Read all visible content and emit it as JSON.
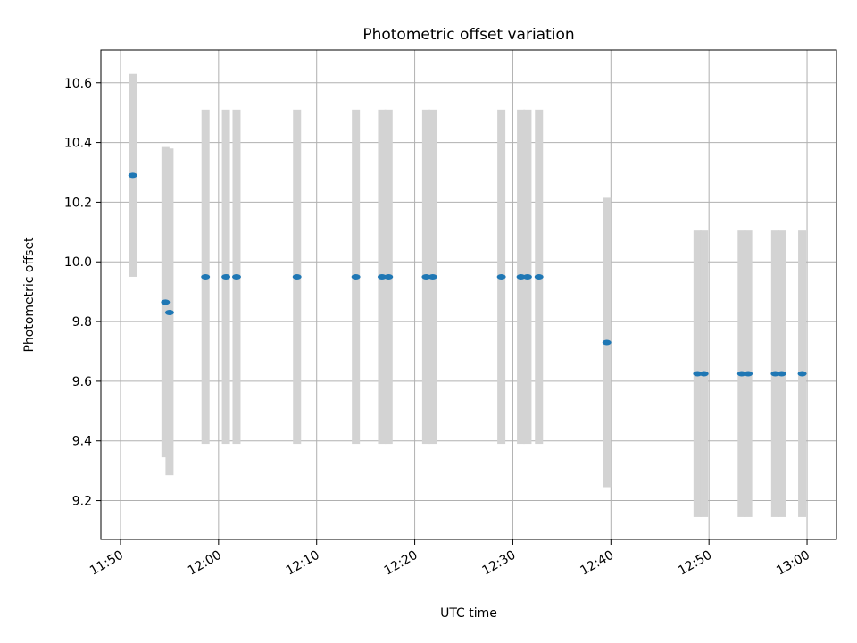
{
  "chart_data": {
    "type": "scatter",
    "title": "Photometric offset variation",
    "xlabel": "UTC time",
    "ylabel": "Photometric offset",
    "x_axis_kind": "time",
    "x_range": [
      "11:48",
      "13:03"
    ],
    "x_ticks": [
      "11:50",
      "12:00",
      "12:10",
      "12:20",
      "12:30",
      "12:40",
      "12:50",
      "13:00"
    ],
    "ylim": [
      9.07,
      10.71
    ],
    "y_ticks": [
      9.2,
      9.4,
      9.6,
      9.8,
      10.0,
      10.2,
      10.4,
      10.6
    ],
    "grid": true,
    "colors": {
      "point": "#1f77b4",
      "error_bar": "#d3d3d3",
      "grid": "#b0b0b0"
    },
    "series": [
      {
        "points": [
          {
            "x": "11:51:15",
            "y": 10.29,
            "ylow": 9.95,
            "yhigh": 10.63
          },
          {
            "x": "11:54:35",
            "y": 9.865,
            "ylow": 9.345,
            "yhigh": 10.385
          },
          {
            "x": "11:55:00",
            "y": 9.83,
            "ylow": 9.285,
            "yhigh": 10.38
          },
          {
            "x": "11:58:40",
            "y": 9.95,
            "ylow": 9.39,
            "yhigh": 10.51
          },
          {
            "x": "12:00:45",
            "y": 9.95,
            "ylow": 9.39,
            "yhigh": 10.51
          },
          {
            "x": "12:01:50",
            "y": 9.95,
            "ylow": 9.39,
            "yhigh": 10.51
          },
          {
            "x": "12:08:00",
            "y": 9.95,
            "ylow": 9.39,
            "yhigh": 10.51
          },
          {
            "x": "12:14:00",
            "y": 9.95,
            "ylow": 9.39,
            "yhigh": 10.51
          },
          {
            "x": "12:16:40",
            "y": 9.95,
            "ylow": 9.39,
            "yhigh": 10.51
          },
          {
            "x": "12:17:20",
            "y": 9.95,
            "ylow": 9.39,
            "yhigh": 10.51
          },
          {
            "x": "12:21:10",
            "y": 9.95,
            "ylow": 9.39,
            "yhigh": 10.51
          },
          {
            "x": "12:21:50",
            "y": 9.95,
            "ylow": 9.39,
            "yhigh": 10.51
          },
          {
            "x": "12:28:50",
            "y": 9.95,
            "ylow": 9.39,
            "yhigh": 10.51
          },
          {
            "x": "12:30:50",
            "y": 9.95,
            "ylow": 9.39,
            "yhigh": 10.51
          },
          {
            "x": "12:31:30",
            "y": 9.95,
            "ylow": 9.39,
            "yhigh": 10.51
          },
          {
            "x": "12:32:40",
            "y": 9.95,
            "ylow": 9.39,
            "yhigh": 10.51
          },
          {
            "x": "12:39:35",
            "y": 9.73,
            "ylow": 9.245,
            "yhigh": 10.215
          },
          {
            "x": "12:48:50",
            "y": 9.625,
            "ylow": 9.145,
            "yhigh": 10.105
          },
          {
            "x": "12:49:30",
            "y": 9.625,
            "ylow": 9.145,
            "yhigh": 10.105
          },
          {
            "x": "12:53:20",
            "y": 9.625,
            "ylow": 9.145,
            "yhigh": 10.105
          },
          {
            "x": "12:54:00",
            "y": 9.625,
            "ylow": 9.145,
            "yhigh": 10.105
          },
          {
            "x": "12:56:45",
            "y": 9.625,
            "ylow": 9.145,
            "yhigh": 10.105
          },
          {
            "x": "12:57:25",
            "y": 9.625,
            "ylow": 9.145,
            "yhigh": 10.105
          },
          {
            "x": "12:59:30",
            "y": 9.625,
            "ylow": 9.145,
            "yhigh": 10.105
          }
        ]
      }
    ]
  }
}
